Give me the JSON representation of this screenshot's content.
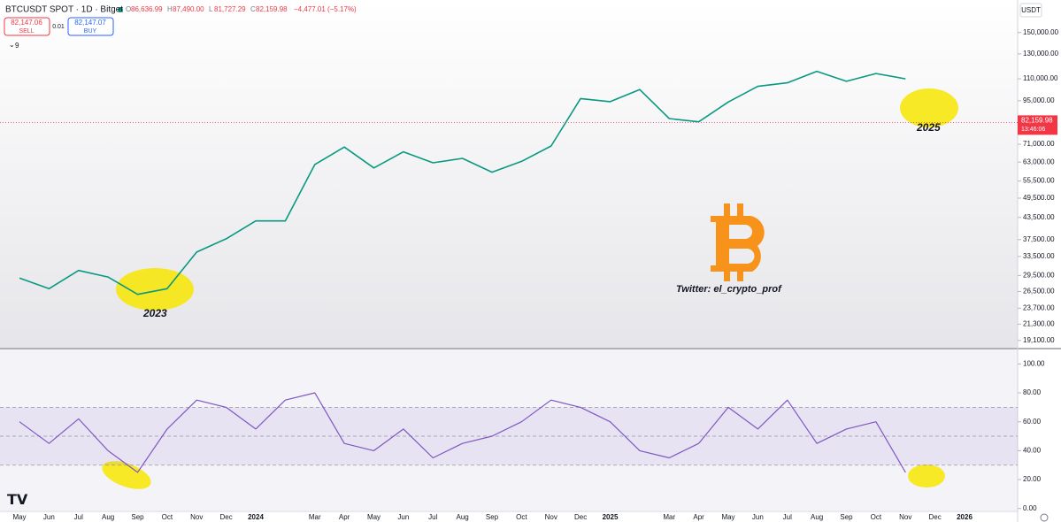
{
  "header": {
    "symbol": "BTCUSDT SPOT · 1D · Bitget",
    "ohlc": [
      {
        "label": "O",
        "value": "86,636.99"
      },
      {
        "label": "H",
        "value": "87,490.00"
      },
      {
        "label": "L",
        "value": "81,727.29"
      },
      {
        "label": "C",
        "value": "82,159.98"
      }
    ],
    "change": "−4,477.01 (−5.17%)",
    "sell": {
      "price": "82,147.06",
      "label": "SELL"
    },
    "spread": "0.01",
    "buy": {
      "price": "82,147.07",
      "label": "BUY"
    },
    "indicator_count": "9",
    "currency": "USDT"
  },
  "annotations": {
    "left": "2023",
    "right": "2025",
    "credit": "Twitter: el_crypto_prof"
  },
  "chart_data": [
    {
      "type": "line",
      "log_scale": true,
      "color": "#089981",
      "categories": [
        "May",
        "Jun",
        "Jul",
        "Aug",
        "Sep",
        "Oct",
        "Nov",
        "Dec",
        "2024",
        null,
        "Mar",
        "Apr",
        "May",
        "Jun",
        "Jul",
        "Aug",
        "Sep",
        "Oct",
        "Nov",
        "Dec",
        "2025",
        null,
        "Mar",
        "Apr",
        "May",
        "Jun",
        "Jul",
        "Aug",
        "Sep",
        "Oct",
        "Nov",
        "Dec",
        "2026"
      ],
      "values": [
        29000,
        27000,
        30500,
        29200,
        26000,
        27000,
        34500,
        37700,
        42500,
        42500,
        62000,
        69700,
        60600,
        67500,
        62700,
        64600,
        58900,
        63300,
        70200,
        96400,
        94400,
        102400,
        84300,
        82500,
        94200,
        104600,
        107100,
        115700,
        108200,
        114000,
        110000,
        null,
        null
      ],
      "ylim": [
        18300,
        181000
      ],
      "yticks": [
        {
          "value": 19100,
          "label": "19,100.00"
        },
        {
          "value": 21300,
          "label": "21,300.00"
        },
        {
          "value": 23700,
          "label": "23,700.00"
        },
        {
          "value": 26500,
          "label": "26,500.00"
        },
        {
          "value": 29500,
          "label": "29,500.00"
        },
        {
          "value": 33500,
          "label": "33,500.00"
        },
        {
          "value": 37500,
          "label": "37,500.00"
        },
        {
          "value": 43500,
          "label": "43,500.00"
        },
        {
          "value": 49500,
          "label": "49,500.00"
        },
        {
          "value": 55500,
          "label": "55,500.00"
        },
        {
          "value": 63000,
          "label": "63,000.00"
        },
        {
          "value": 71000,
          "label": "71,000.00"
        },
        {
          "value": 95000,
          "label": "95,000.00"
        },
        {
          "value": 110000,
          "label": "110,000.00"
        },
        {
          "value": 130000,
          "label": "130,000.00"
        },
        {
          "value": 150000,
          "label": "150,000.00"
        }
      ],
      "last_price": {
        "value": 82159.98,
        "label": "82,159.98"
      },
      "countdown": "13:46:06"
    },
    {
      "type": "line",
      "color": "#7e57c2",
      "categories": [
        "May",
        "Jun",
        "Jul",
        "Aug",
        "Sep",
        "Oct",
        "Nov",
        "Dec",
        "2024",
        null,
        "Mar",
        "Apr",
        "May",
        "Jun",
        "Jul",
        "Aug",
        "Sep",
        "Oct",
        "Nov",
        "Dec",
        "2025",
        null,
        "Mar",
        "Apr",
        "May",
        "Jun",
        "Jul",
        "Aug",
        "Sep",
        "Oct",
        "Nov",
        "Dec",
        "2026"
      ],
      "values": [
        60,
        45,
        62,
        40,
        25,
        55,
        75,
        70,
        55,
        75,
        80,
        45,
        40,
        55,
        35,
        45,
        50,
        60,
        75,
        70,
        60,
        40,
        35,
        45,
        70,
        55,
        75,
        45,
        55,
        60,
        25,
        null,
        null
      ],
      "ylim": [
        -2,
        110
      ],
      "yticks": [
        {
          "value": 0,
          "label": "0.00"
        },
        {
          "value": 20,
          "label": "20.00"
        },
        {
          "value": 40,
          "label": "40.00"
        },
        {
          "value": 60,
          "label": "60.00"
        },
        {
          "value": 80,
          "label": "80.00"
        },
        {
          "value": 100,
          "label": "100.00"
        }
      ],
      "bands": [
        30,
        50,
        70
      ]
    }
  ]
}
